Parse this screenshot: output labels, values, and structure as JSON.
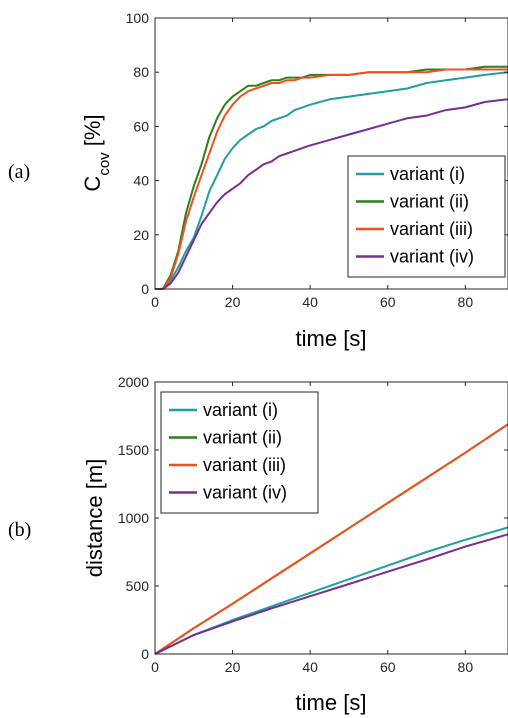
{
  "chart_data": [
    {
      "type": "line",
      "panel_label": "(a)",
      "xlabel": "time [s]",
      "ylabel_main": "C",
      "ylabel_sub": "cov",
      "ylabel_unit": " [%]",
      "xlim": [
        0,
        91
      ],
      "ylim": [
        0,
        100
      ],
      "xticks": [
        0,
        20,
        40,
        60,
        80
      ],
      "yticks": [
        0,
        20,
        40,
        60,
        80,
        100
      ],
      "legend_position": "lower-right",
      "series": [
        {
          "name": "variant (i)",
          "color": "#1f9ea4",
          "x": [
            0,
            2,
            4,
            6,
            8,
            10,
            12,
            14,
            16,
            18,
            20,
            22,
            24,
            26,
            28,
            30,
            32,
            34,
            36,
            38,
            40,
            45,
            50,
            55,
            60,
            65,
            70,
            75,
            80,
            85,
            91
          ],
          "y": [
            0,
            0,
            3,
            8,
            14,
            19,
            27,
            36,
            42,
            48,
            52,
            55,
            57,
            59,
            60,
            62,
            63,
            64,
            66,
            67,
            68,
            70,
            71,
            72,
            73,
            74,
            76,
            77,
            78,
            79,
            80
          ]
        },
        {
          "name": "variant (ii)",
          "color": "#2e7d1e",
          "x": [
            0,
            2,
            4,
            6,
            8,
            10,
            12,
            14,
            16,
            18,
            20,
            22,
            24,
            26,
            28,
            30,
            32,
            34,
            36,
            38,
            40,
            45,
            50,
            55,
            60,
            65,
            70,
            75,
            80,
            85,
            91
          ],
          "y": [
            0,
            0,
            5,
            14,
            28,
            38,
            46,
            56,
            63,
            68,
            71,
            73,
            75,
            75,
            76,
            77,
            77,
            78,
            78,
            78,
            79,
            79,
            79,
            80,
            80,
            80,
            81,
            81,
            81,
            82,
            82
          ]
        },
        {
          "name": "variant (iii)",
          "color": "#f0501e",
          "x": [
            0,
            2,
            4,
            6,
            8,
            10,
            12,
            14,
            16,
            18,
            20,
            22,
            24,
            26,
            28,
            30,
            32,
            34,
            36,
            38,
            40,
            45,
            50,
            55,
            60,
            65,
            70,
            75,
            80,
            85,
            91
          ],
          "y": [
            0,
            0,
            4,
            13,
            25,
            34,
            42,
            50,
            58,
            64,
            68,
            71,
            73,
            74,
            75,
            76,
            76,
            77,
            77,
            78,
            78,
            79,
            79,
            80,
            80,
            80,
            80,
            81,
            81,
            81,
            81
          ]
        },
        {
          "name": "variant (iv)",
          "color": "#7b2d8e",
          "x": [
            0,
            2,
            4,
            6,
            8,
            10,
            12,
            14,
            16,
            18,
            20,
            22,
            24,
            26,
            28,
            30,
            32,
            34,
            36,
            38,
            40,
            45,
            50,
            55,
            60,
            65,
            70,
            75,
            80,
            85,
            91
          ],
          "y": [
            0,
            0,
            2,
            6,
            12,
            18,
            24,
            28,
            32,
            35,
            37,
            39,
            42,
            44,
            46,
            47,
            49,
            50,
            51,
            52,
            53,
            55,
            57,
            59,
            61,
            63,
            64,
            66,
            67,
            69,
            70
          ]
        }
      ]
    },
    {
      "type": "line",
      "panel_label": "(b)",
      "xlabel": "time [s]",
      "ylabel": "distance [m]",
      "xlim": [
        0,
        91
      ],
      "ylim": [
        0,
        2000
      ],
      "xticks": [
        0,
        20,
        40,
        60,
        80
      ],
      "yticks": [
        0,
        500,
        1000,
        1500,
        2000
      ],
      "legend_position": "upper-left",
      "series": [
        {
          "name": "variant (i)",
          "color": "#1f9ea4",
          "x": [
            0,
            5,
            10,
            20,
            30,
            40,
            50,
            60,
            70,
            80,
            91
          ],
          "y": [
            0,
            70,
            140,
            250,
            350,
            450,
            550,
            650,
            750,
            840,
            930
          ]
        },
        {
          "name": "variant (ii)",
          "color": "#2e7d1e",
          "x": [
            0,
            5,
            10,
            20,
            30,
            40,
            50,
            60,
            70,
            80,
            91
          ],
          "y": [
            0,
            95,
            190,
            370,
            555,
            740,
            925,
            1110,
            1295,
            1480,
            1690
          ]
        },
        {
          "name": "variant (iii)",
          "color": "#f0501e",
          "x": [
            0,
            5,
            10,
            20,
            30,
            40,
            50,
            60,
            70,
            80,
            91
          ],
          "y": [
            0,
            95,
            190,
            370,
            555,
            740,
            925,
            1110,
            1295,
            1480,
            1690
          ]
        },
        {
          "name": "variant (iv)",
          "color": "#7b2d8e",
          "x": [
            0,
            5,
            10,
            20,
            30,
            40,
            50,
            60,
            70,
            80,
            91
          ],
          "y": [
            0,
            70,
            140,
            240,
            335,
            425,
            515,
            605,
            695,
            790,
            880
          ]
        }
      ]
    }
  ]
}
